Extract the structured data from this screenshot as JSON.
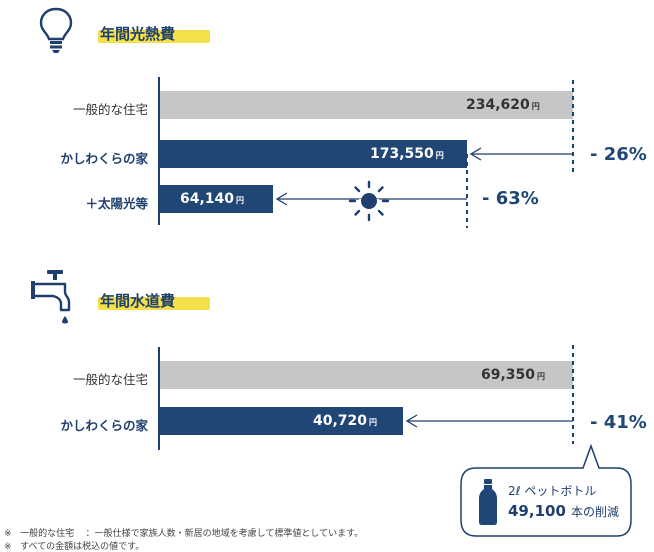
{
  "sections": {
    "energy": {
      "title": "年間光熱費",
      "icon": "light-bulb-icon",
      "rows": [
        {
          "label": "一般的な住宅",
          "value": "234,620",
          "unit": "円"
        },
        {
          "label": "かしわくらの家",
          "value": "173,550",
          "unit": "円"
        },
        {
          "label": "＋太陽光等",
          "value": "64,140",
          "unit": "円"
        }
      ],
      "reductions": [
        "- 26%",
        "- 63%"
      ]
    },
    "water": {
      "title": "年間水道費",
      "icon": "water-faucet-icon",
      "rows": [
        {
          "label": "一般的な住宅",
          "value": "69,350",
          "unit": "円"
        },
        {
          "label": "かしわくらの家",
          "value": "40,720",
          "unit": "円"
        }
      ],
      "reductions": [
        "- 41%"
      ]
    }
  },
  "bubble": {
    "line1": "2ℓ ペットボトル",
    "number": "49,100",
    "suffix": "本の削減",
    "icon": "pet-bottle-icon"
  },
  "notes": {
    "mark": "※",
    "note1_term": "一般的な住宅",
    "note1_text": "：一般仕様で家族人数・新居の地域を考慮して標準値としています。",
    "note2_text": "すべての金額は税込の値です。"
  },
  "colors": {
    "navy": "#1f4675",
    "gray": "#c6c6c6",
    "highlight": "#f3e04a"
  },
  "chart_data": [
    {
      "type": "bar",
      "orientation": "horizontal",
      "title": "年間光熱費",
      "categories": [
        "一般的な住宅",
        "かしわくらの家",
        "＋太陽光等"
      ],
      "values": [
        234620,
        173550,
        64140
      ],
      "unit": "円",
      "annotations": [
        "- 26%",
        "- 63%"
      ]
    },
    {
      "type": "bar",
      "orientation": "horizontal",
      "title": "年間水道費",
      "categories": [
        "一般的な住宅",
        "かしわくらの家"
      ],
      "values": [
        69350,
        40720
      ],
      "unit": "円",
      "annotations": [
        "- 41%"
      ]
    }
  ]
}
